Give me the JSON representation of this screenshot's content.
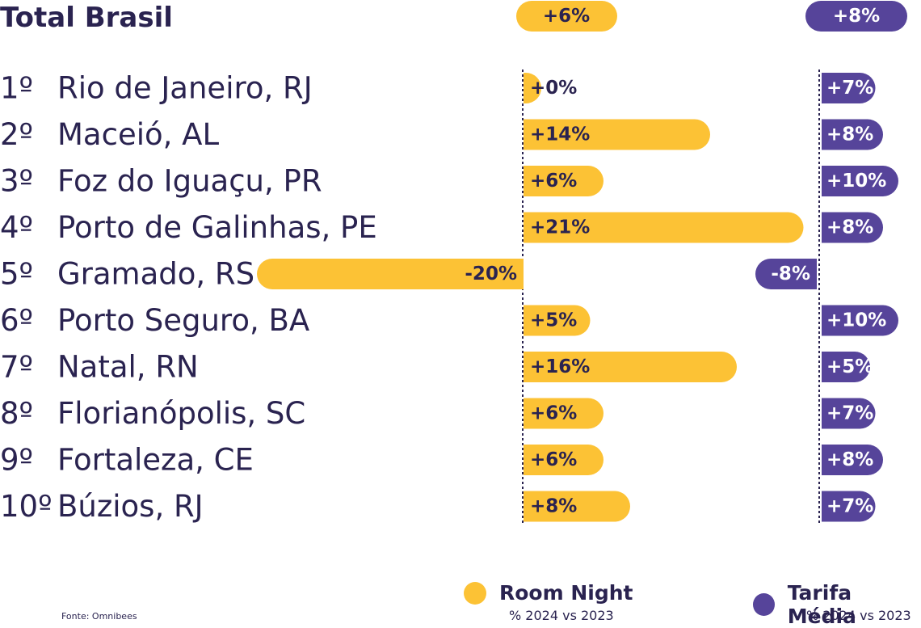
{
  "title": "Total Brasil",
  "chart_data": {
    "type": "bar",
    "categories": [
      "Rio de Janeiro, RJ",
      "Maceió, AL",
      "Foz do Iguaçu, PR",
      "Porto de Galinhas, PE",
      "Gramado, RS",
      "Porto Seguro, BA",
      "Natal, RN",
      "Florianópolis, SC",
      "Fortaleza, CE",
      "Búzios, RJ"
    ],
    "ranks": [
      "1º",
      "2º",
      "3º",
      "4º",
      "5º",
      "6º",
      "7º",
      "8º",
      "9º",
      "10º"
    ],
    "series": [
      {
        "name": "Room Night",
        "total": 6,
        "total_label": "+6%",
        "values": [
          0,
          14,
          6,
          21,
          -20,
          5,
          16,
          6,
          6,
          8
        ],
        "labels": [
          "+0%",
          "+14%",
          "+6%",
          "+21%",
          "-20%",
          "+5%",
          "+16%",
          "+6%",
          "+6%",
          "+8%"
        ],
        "color": "#fcc235"
      },
      {
        "name": "Tarifa Média",
        "total": 8,
        "total_label": "+8%",
        "values": [
          7,
          8,
          10,
          8,
          -8,
          10,
          5,
          7,
          8,
          7
        ],
        "labels": [
          "+7%",
          "+8%",
          "+10%",
          "+8%",
          "-8%",
          "+10%",
          "+5%",
          "+7%",
          "+8%",
          "+7%"
        ],
        "color": "#56449a"
      }
    ],
    "grid": false,
    "legend_placement": "bottom-right"
  },
  "legend": [
    {
      "name": "Room Night",
      "sub": "% 2024 vs 2023",
      "color": "#fcc235"
    },
    {
      "name": "Tarifa Média",
      "sub": "% 2024 vs 2023",
      "color": "#56449a"
    }
  ],
  "source": "Fonte: Omnibees"
}
